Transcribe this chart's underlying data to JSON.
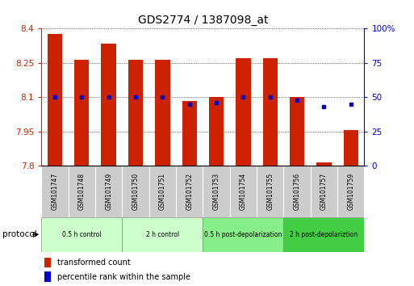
{
  "title": "GDS2774 / 1387098_at",
  "categories": [
    "GSM101747",
    "GSM101748",
    "GSM101749",
    "GSM101750",
    "GSM101751",
    "GSM101752",
    "GSM101753",
    "GSM101754",
    "GSM101755",
    "GSM101756",
    "GSM101757",
    "GSM101759"
  ],
  "bar_values": [
    8.375,
    8.265,
    8.335,
    8.265,
    8.265,
    8.085,
    8.1,
    8.27,
    8.27,
    8.1,
    7.815,
    7.955
  ],
  "percentile_values": [
    50,
    50,
    50,
    50,
    50,
    45,
    46,
    50,
    50,
    48,
    43,
    45
  ],
  "ylim": [
    7.8,
    8.4
  ],
  "yticks_left": [
    7.8,
    7.95,
    8.1,
    8.25,
    8.4
  ],
  "yticks_right": [
    0,
    25,
    50,
    75,
    100
  ],
  "bar_color": "#cc2200",
  "dot_color": "#0000cc",
  "baseline": 7.8,
  "protocols": [
    {
      "label": "0.5 h control",
      "start": 0,
      "end": 3,
      "color": "#ccffcc"
    },
    {
      "label": "2 h control",
      "start": 3,
      "end": 6,
      "color": "#ccffcc"
    },
    {
      "label": "0.5 h post-depolarization",
      "start": 6,
      "end": 9,
      "color": "#88ee88"
    },
    {
      "label": "2 h post-depolariztion",
      "start": 9,
      "end": 12,
      "color": "#44cc44"
    }
  ],
  "legend_items": [
    {
      "label": "transformed count",
      "color": "#cc2200"
    },
    {
      "label": "percentile rank within the sample",
      "color": "#0000cc"
    }
  ],
  "figsize": [
    5.13,
    3.54
  ],
  "dpi": 100,
  "bg_color": "#ffffff",
  "label_box_color": "#cccccc",
  "protocol_label": "protocol"
}
